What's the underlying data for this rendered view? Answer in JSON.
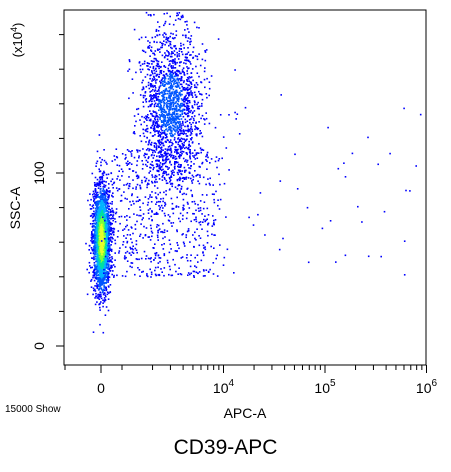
{
  "figure": {
    "caption": "CD39-APC",
    "events_label": "15000 Show"
  },
  "chart_data": {
    "type": "scatter",
    "style": "density dot plot (cytometry), colored from blue (low) to green/yellow (high density)",
    "xlabel": "APC-A",
    "ylabel": "SSC-A",
    "y_multiplier": "(x10^4)",
    "x_scale": "biexponential (linear near 0, log above 10^3)",
    "x_ticks": [
      "0",
      "10^4",
      "10^5",
      "10^6"
    ],
    "y_ticks": [
      "0",
      "100"
    ],
    "xlim": [
      "-10^3",
      "10^6"
    ],
    "ylim": [
      -8,
      190
    ],
    "total_events": 15000,
    "populations": [
      {
        "name": "",
        "approx_x_center": 0,
        "approx_x_spread": "±600",
        "approx_y_center": 62,
        "approx_y_range": [
          30,
          100
        ],
        "relative_density": "high"
      },
      {
        "name": "",
        "approx_x_center": 3500,
        "approx_x_range": [
          1500,
          8000
        ],
        "approx_y_center": 140,
        "approx_y_range": [
          100,
          185
        ],
        "relative_density": "medium"
      },
      {
        "name": "",
        "approx_x_range": [
          500,
          5000
        ],
        "approx_y_range": [
          40,
          110
        ],
        "relative_density": "low"
      }
    ],
    "density_colors": [
      "#0000ff",
      "#0055ff",
      "#00b4ff",
      "#00e0a0",
      "#7cff3a",
      "#e8ff2a"
    ]
  }
}
